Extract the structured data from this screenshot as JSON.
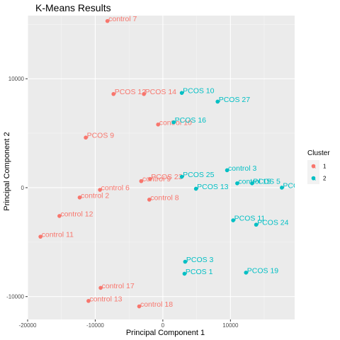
{
  "chart_data": {
    "type": "scatter",
    "title": "K-Means Results",
    "xlabel": "Principal Component 1",
    "ylabel": "Principal Component 2",
    "xlim": [
      -20000,
      19500
    ],
    "ylim": [
      -12100,
      15800
    ],
    "x_ticks": [
      -20000,
      -10000,
      0,
      10000
    ],
    "x_tick_labels": [
      "-20000",
      "-10000",
      "0",
      "10000"
    ],
    "y_ticks": [
      -10000,
      0,
      10000
    ],
    "y_tick_labels": [
      "-10000",
      "0",
      "10000"
    ],
    "grid": true,
    "legend": {
      "title": "Cluster",
      "position": "right",
      "entries": [
        {
          "label": "1",
          "color": "#F8766D"
        },
        {
          "label": "2",
          "color": "#00BFC4"
        }
      ]
    },
    "series": [
      {
        "name": "1",
        "color": "#F8766D",
        "points": [
          {
            "label": "control 7",
            "x": -8200,
            "y": 15300
          },
          {
            "label": "PCOS 12",
            "x": -7300,
            "y": 8600
          },
          {
            "label": "PCOS 14",
            "x": -2800,
            "y": 8600
          },
          {
            "label": "control 10",
            "x": -700,
            "y": 5800
          },
          {
            "label": "PCOS 9",
            "x": -11400,
            "y": 4600
          },
          {
            "label": "PCOS 23",
            "x": -1900,
            "y": 800
          },
          {
            "label": "control 9",
            "x": -3200,
            "y": 600
          },
          {
            "label": "control 6",
            "x": -9300,
            "y": -200
          },
          {
            "label": "control 2",
            "x": -12300,
            "y": -900
          },
          {
            "label": "control 8",
            "x": -2000,
            "y": -1100
          },
          {
            "label": "control 12",
            "x": -15300,
            "y": -2600
          },
          {
            "label": "control 11",
            "x": -18100,
            "y": -4500
          },
          {
            "label": "control 17",
            "x": -9200,
            "y": -9200
          },
          {
            "label": "control 13",
            "x": -11000,
            "y": -10400
          },
          {
            "label": "control 18",
            "x": -3500,
            "y": -10900
          }
        ]
      },
      {
        "name": "2",
        "color": "#00BFC4",
        "points": [
          {
            "label": "PCOS 10",
            "x": 2800,
            "y": 8700
          },
          {
            "label": "PCOS 27",
            "x": 8100,
            "y": 7900
          },
          {
            "label": "PCOS 16",
            "x": 1600,
            "y": 6000
          },
          {
            "label": "PCOS 25",
            "x": 2800,
            "y": 1000
          },
          {
            "label": "control 3",
            "x": 9500,
            "y": 1600
          },
          {
            "label": "PCOS 13",
            "x": 4900,
            "y": -100
          },
          {
            "label": "control 15",
            "x": 11000,
            "y": 400
          },
          {
            "label": "PCOS 5",
            "x": 13200,
            "y": 400
          },
          {
            "label": "PCOS",
            "x": 17600,
            "y": 0
          },
          {
            "label": "PCOS 11",
            "x": 10400,
            "y": -3000
          },
          {
            "label": "PCOS 24",
            "x": 13800,
            "y": -3400
          },
          {
            "label": "PCOS 3",
            "x": 3300,
            "y": -6800
          },
          {
            "label": "PCOS 1",
            "x": 3200,
            "y": -7900
          },
          {
            "label": "PCOS 19",
            "x": 12300,
            "y": -7800
          }
        ]
      }
    ]
  }
}
